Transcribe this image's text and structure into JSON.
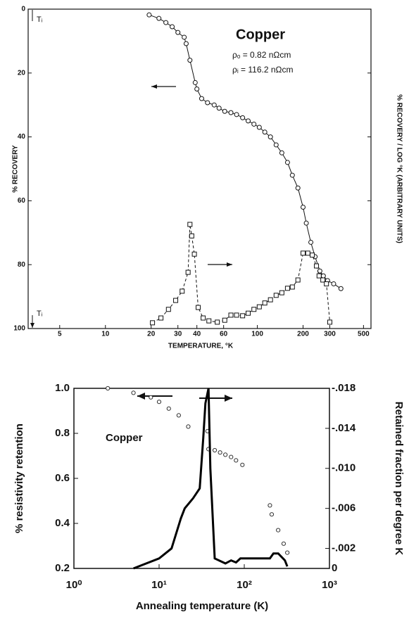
{
  "chart_data": [
    {
      "type": "line",
      "xlabel": "TEMPERATURE, °K",
      "ylabel": "% RECOVERY",
      "y2label": "% RECOVERY / LOG °K (ARBITRARY UNITS)",
      "annotations": [
        "Copper",
        "ρₒ =  0.82 nΩcm",
        "ρᵢ = 116.2 nΩcm",
        "Tᵢ",
        "Tᵢ"
      ],
      "xscale": "log",
      "xlim": [
        3.1,
        560
      ],
      "xticks": [
        5,
        10,
        20,
        30,
        40,
        60,
        100,
        200,
        300,
        500
      ],
      "ylim": [
        100,
        0
      ],
      "yticks": [
        0,
        20,
        40,
        60,
        80,
        100
      ],
      "y2lim": [
        0,
        100
      ],
      "series": [
        {
          "color": "#111111",
          "marker": "circle",
          "line": "solid",
          "x": [
            19.4,
            22.5,
            25,
            27.5,
            30,
            33,
            34,
            36,
            39,
            40,
            43,
            47,
            52,
            56,
            61,
            67,
            73,
            80,
            87,
            95,
            103,
            112,
            122,
            133,
            145,
            158,
            170,
            185,
            200,
            210,
            225,
            240,
            258,
            272,
            290,
            318,
            355
          ],
          "values": [
            1.8,
            2.9,
            4.2,
            5.5,
            7.3,
            8.8,
            10.8,
            16,
            23,
            25,
            28,
            29.3,
            30,
            31,
            32,
            32.4,
            33,
            34,
            35,
            36,
            37,
            38.5,
            40,
            42.5,
            45,
            48,
            52,
            56,
            62,
            67,
            73,
            77.5,
            82,
            83.5,
            85,
            86,
            87.5
          ]
        },
        {
          "color": "#111111",
          "marker": "square",
          "line": "dashed",
          "axis": "y2",
          "x": [
            20.4,
            23.2,
            26,
            29,
            32,
            35,
            36,
            37,
            38.5,
            40.8,
            44,
            48,
            54.5,
            61,
            67,
            73,
            80,
            87,
            95,
            103,
            112,
            122,
            133,
            145,
            158,
            170,
            185,
            200,
            215,
            230,
            245,
            255,
            270,
            285,
            300
          ],
          "values": [
            1.8,
            3.3,
            6,
            8.8,
            11.7,
            17.6,
            32.6,
            29,
            23.3,
            6.6,
            3.3,
            2.4,
            2,
            2.6,
            4.2,
            4.2,
            4,
            4.8,
            6,
            6.8,
            8,
            9,
            10.4,
            11.2,
            12.6,
            13,
            15.2,
            23.6,
            23.6,
            23,
            19.6,
            16.5,
            15.2,
            14,
            2
          ]
        }
      ]
    },
    {
      "type": "line",
      "xlabel": "Annealing temperature (K)",
      "ylabel": "% resistivity retention",
      "y2label": "Retained fraction per degree K",
      "annotations": [
        "Copper"
      ],
      "xscale": "log",
      "xlim": [
        1,
        1000
      ],
      "xticks": [
        {
          "value": 1,
          "label": "10⁰"
        },
        {
          "value": 10,
          "label": "10¹"
        },
        {
          "value": 100,
          "label": "10²"
        },
        {
          "value": 1000,
          "label": "10³"
        }
      ],
      "ylim": [
        0.2,
        1.0
      ],
      "yticks": [
        0.2,
        0.4,
        0.6,
        0.8,
        {
          "value": 1.0,
          "label": "1.0"
        }
      ],
      "y2lim": [
        0,
        -0.018
      ],
      "y2ticks": [
        {
          "value": -0.018,
          "label": "-.018"
        },
        {
          "value": -0.014,
          "label": "-.014"
        },
        {
          "value": -0.01,
          "label": "-.010"
        },
        {
          "value": -0.006,
          "label": "-.006"
        },
        {
          "value": -0.002,
          "label": "-.002"
        },
        0
      ],
      "series": [
        {
          "color": "#333333",
          "marker": "circle",
          "line": "none",
          "x": [
            2.5,
            5,
            8,
            10,
            13,
            17,
            22,
            37,
            38,
            45,
            52,
            60,
            70,
            80,
            95,
            200,
            210,
            250,
            290,
            320
          ],
          "values": [
            1.0,
            0.98,
            0.96,
            0.94,
            0.91,
            0.88,
            0.83,
            0.81,
            0.73,
            0.725,
            0.715,
            0.705,
            0.695,
            0.68,
            0.66,
            0.48,
            0.44,
            0.37,
            0.31,
            0.27
          ]
        },
        {
          "color": "#000000",
          "marker": "none",
          "line": "thick",
          "axis": "y2",
          "x": [
            5,
            10,
            14,
            18,
            20,
            25,
            30,
            33,
            35,
            38,
            40,
            45,
            60,
            70,
            80,
            90,
            150,
            200,
            220,
            250,
            300,
            320
          ],
          "values": [
            0,
            -0.001,
            -0.002,
            -0.005,
            -0.006,
            -0.007,
            -0.008,
            -0.013,
            -0.0165,
            -0.018,
            -0.01,
            -0.001,
            -0.0005,
            -0.0008,
            -0.0006,
            -0.001,
            -0.001,
            -0.001,
            -0.0015,
            -0.0015,
            -0.0008,
            -0.0002
          ]
        }
      ]
    }
  ]
}
